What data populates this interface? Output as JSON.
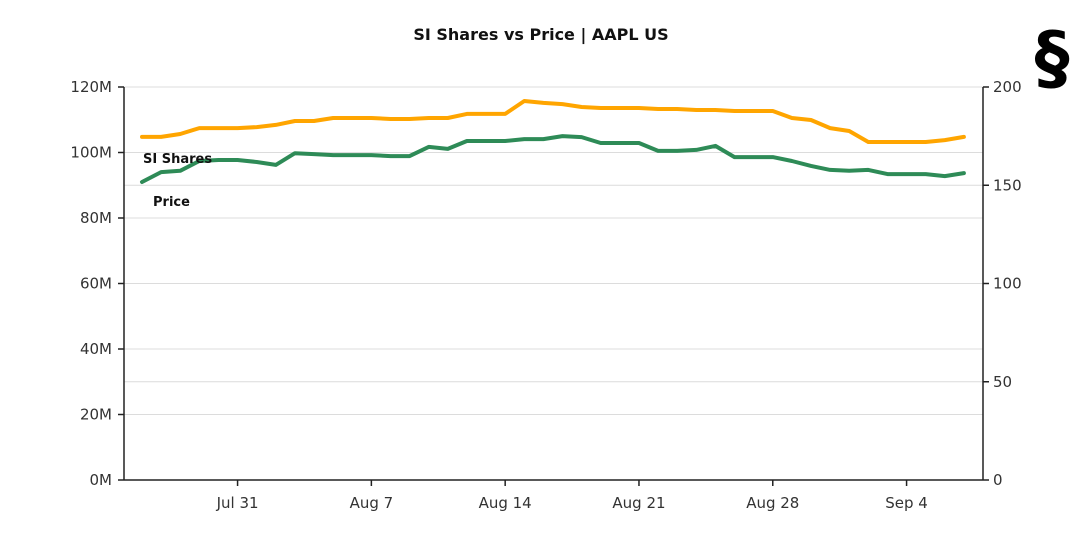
{
  "logo": {
    "glyph": "§",
    "icon": "section-sign-logo-icon"
  },
  "chart_data": {
    "type": "line",
    "title": "SI Shares vs Price | AAPL US",
    "xlabel": "",
    "ylabel_left": "",
    "ylabel_right": "",
    "grid": true,
    "x": [
      "Jul 26",
      "Jul 27",
      "Jul 28",
      "Jul 29",
      "Jul 30",
      "Jul 31",
      "Aug 1",
      "Aug 2",
      "Aug 3",
      "Aug 4",
      "Aug 5",
      "Aug 6",
      "Aug 7",
      "Aug 8",
      "Aug 9",
      "Aug 10",
      "Aug 11",
      "Aug 12",
      "Aug 13",
      "Aug 14",
      "Aug 15",
      "Aug 16",
      "Aug 17",
      "Aug 18",
      "Aug 19",
      "Aug 20",
      "Aug 21",
      "Aug 22",
      "Aug 23",
      "Aug 24",
      "Aug 25",
      "Aug 26",
      "Aug 27",
      "Aug 28",
      "Aug 29",
      "Aug 30",
      "Aug 31",
      "Sep 1",
      "Sep 2",
      "Sep 3",
      "Sep 4",
      "Sep 5",
      "Sep 6",
      "Sep 7"
    ],
    "x_ticks": [
      "Jul 31",
      "Aug 7",
      "Aug 14",
      "Aug 21",
      "Aug 28",
      "Sep 4"
    ],
    "y_left": {
      "ticks": [
        "0M",
        "20M",
        "40M",
        "60M",
        "80M",
        "100M",
        "120M"
      ],
      "range": [
        0,
        120
      ],
      "unit": "M"
    },
    "y_right": {
      "ticks": [
        "0",
        "50",
        "100",
        "150",
        "200"
      ],
      "range": [
        0,
        200
      ]
    },
    "series": [
      {
        "name": "SI Shares",
        "axis": "left",
        "color": "#2e8b57",
        "values": [
          91.0,
          94.0,
          94.4,
          97.4,
          97.7,
          97.7,
          97.1,
          96.2,
          99.8,
          99.5,
          99.2,
          99.2,
          99.2,
          98.9,
          98.9,
          101.7,
          101.1,
          103.5,
          103.5,
          103.5,
          104.1,
          104.1,
          105.0,
          104.7,
          102.9,
          102.9,
          102.9,
          100.5,
          100.5,
          100.8,
          102.0,
          98.6,
          98.6,
          98.6,
          97.4,
          95.9,
          94.7,
          94.4,
          94.7,
          93.4,
          93.4,
          93.4,
          92.8,
          93.7
        ]
      },
      {
        "name": "Price",
        "axis": "right",
        "color": "#ffa500",
        "values": [
          174.6,
          174.6,
          176.1,
          179.1,
          179.1,
          179.1,
          179.6,
          180.7,
          182.7,
          182.7,
          184.2,
          184.2,
          184.2,
          183.7,
          183.7,
          184.2,
          184.2,
          186.3,
          186.3,
          186.3,
          192.9,
          191.9,
          191.3,
          189.8,
          189.3,
          189.3,
          189.3,
          188.8,
          188.8,
          188.3,
          188.3,
          187.8,
          187.8,
          187.8,
          184.2,
          183.2,
          179.1,
          177.6,
          172.0,
          172.0,
          172.0,
          172.0,
          173.0,
          174.6
        ]
      }
    ],
    "annotations": [
      {
        "text": "SI Shares",
        "series": "SI Shares"
      },
      {
        "text": "Price",
        "series": "Price"
      }
    ]
  }
}
